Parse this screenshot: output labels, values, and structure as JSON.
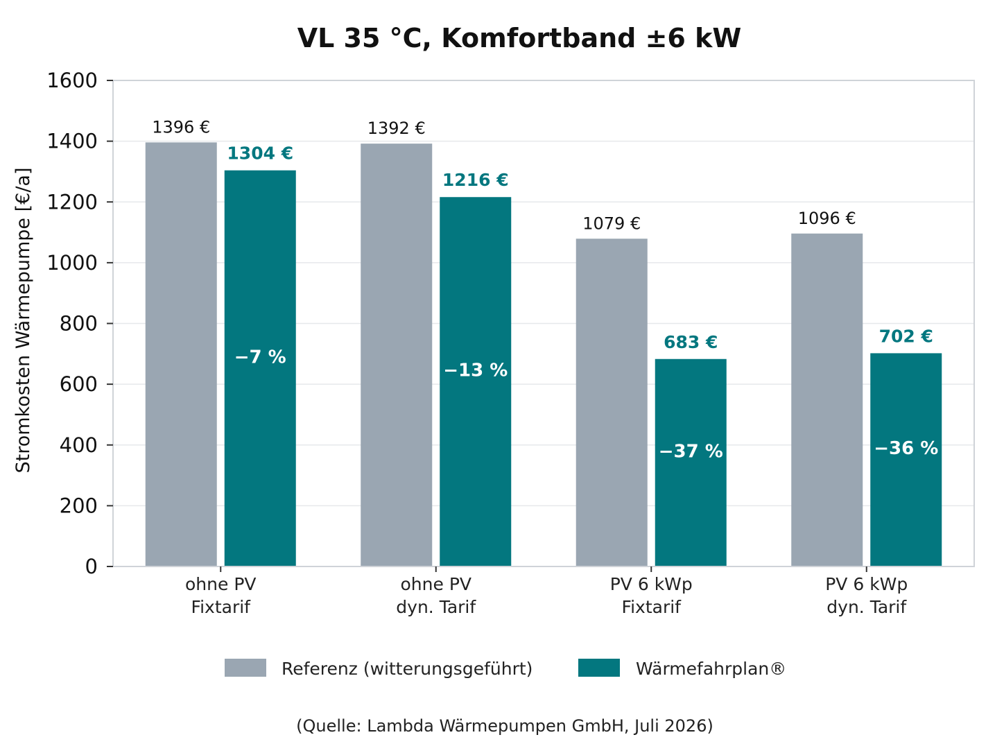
{
  "chart_data": {
    "type": "bar",
    "title": "VL 35 °C, Komfortband ±6 kW",
    "ylabel": "Stromkosten Wärmepumpe [€/a]",
    "xlabel": "",
    "ylim": [
      0,
      1600
    ],
    "yticks": [
      "0",
      "200",
      "400",
      "600",
      "800",
      "1000",
      "1200",
      "1400",
      "1600"
    ],
    "grid": true,
    "legend_position": "bottom",
    "categories": [
      [
        "ohne PV",
        "Fixtarif"
      ],
      [
        "ohne PV",
        "dyn. Tarif"
      ],
      [
        "PV 6 kWp",
        "Fixtarif"
      ],
      [
        "PV 6 kWp",
        "dyn. Tarif"
      ]
    ],
    "series": [
      {
        "name": "Referenz (witterungsgeführt)",
        "color": "#9aa6b2",
        "values": [
          1396,
          1392,
          1079,
          1096
        ],
        "labels": [
          "1396 €",
          "1392 €",
          "1079 €",
          "1096 €"
        ]
      },
      {
        "name": "Wärmefahrplan®",
        "color": "#03777f",
        "values": [
          1304,
          1216,
          683,
          702
        ],
        "labels": [
          "1304 €",
          "1216 €",
          "683 €",
          "702 €"
        ],
        "change_labels": [
          "−7 %",
          "−13 %",
          "−37 %",
          "−36 %"
        ]
      }
    ],
    "source": "(Quelle: Lambda Wärmepumpen GmbH, Juli 2026)"
  }
}
